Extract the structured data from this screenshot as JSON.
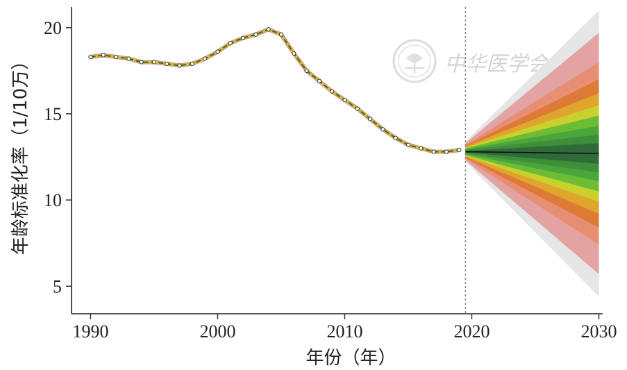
{
  "chart_data": {
    "type": "line",
    "xlabel": "年份（年）",
    "ylabel": "年龄标准化率（1/10万）",
    "xlim": [
      1988.5,
      2030.3
    ],
    "ylim": [
      3.4,
      21.2
    ],
    "x_ticks": [
      1990,
      2000,
      2010,
      2020,
      2030
    ],
    "y_ticks": [
      5,
      10,
      15,
      20
    ],
    "x_tick_labels": [
      "1990",
      "2000",
      "2010",
      "2020",
      "2030"
    ],
    "y_tick_labels": [
      "5",
      "10",
      "15",
      "20"
    ],
    "grid": false,
    "legend": "none",
    "forecast_start": 2019.5,
    "observed": {
      "x": [
        1990,
        1991,
        1992,
        1993,
        1994,
        1995,
        1996,
        1997,
        1998,
        1999,
        2000,
        2001,
        2002,
        2003,
        2004,
        2005,
        2006,
        2007,
        2008,
        2009,
        2010,
        2011,
        2012,
        2013,
        2014,
        2015,
        2016,
        2017,
        2018,
        2019
      ],
      "y": [
        18.3,
        18.4,
        18.3,
        18.2,
        18.0,
        18.0,
        17.9,
        17.8,
        17.9,
        18.2,
        18.6,
        19.1,
        19.4,
        19.6,
        19.9,
        19.6,
        18.5,
        17.5,
        16.9,
        16.3,
        15.8,
        15.3,
        14.7,
        14.1,
        13.6,
        13.2,
        13.0,
        12.8,
        12.8,
        12.9
      ]
    },
    "forecast": {
      "x": [
        2019.5,
        2030
      ],
      "y": [
        12.8,
        12.7
      ]
    },
    "fan_bands": {
      "x": [
        2019.5,
        2030
      ],
      "center": [
        12.8,
        12.7
      ],
      "half_widths": [
        [
          0.05,
          0.6
        ],
        [
          0.1,
          1.1
        ],
        [
          0.15,
          1.6
        ],
        [
          0.2,
          2.2
        ],
        [
          0.25,
          2.8
        ],
        [
          0.3,
          3.5
        ],
        [
          0.35,
          4.3
        ],
        [
          0.4,
          5.3
        ],
        [
          0.5,
          7.0
        ],
        [
          0.6,
          8.3
        ]
      ],
      "colors": [
        "#2f6b3a",
        "#3f8f3a",
        "#4aa53b",
        "#6cbd35",
        "#c9d12e",
        "#e0a52c",
        "#dd7a35",
        "#e88f73",
        "#e3a3a3",
        "#e6e6e6"
      ]
    },
    "colors": {
      "observed_line": "#2e5d2e",
      "observed_halo": "#e38f7a",
      "observed_inner": "#c9c23a",
      "point_fill": "#ffffff",
      "forecast_line": "#111111",
      "divider": "#888888",
      "axis": "#222222"
    }
  },
  "watermark": {
    "text": "中华医学会",
    "seal_icon": "cma-seal-icon"
  }
}
